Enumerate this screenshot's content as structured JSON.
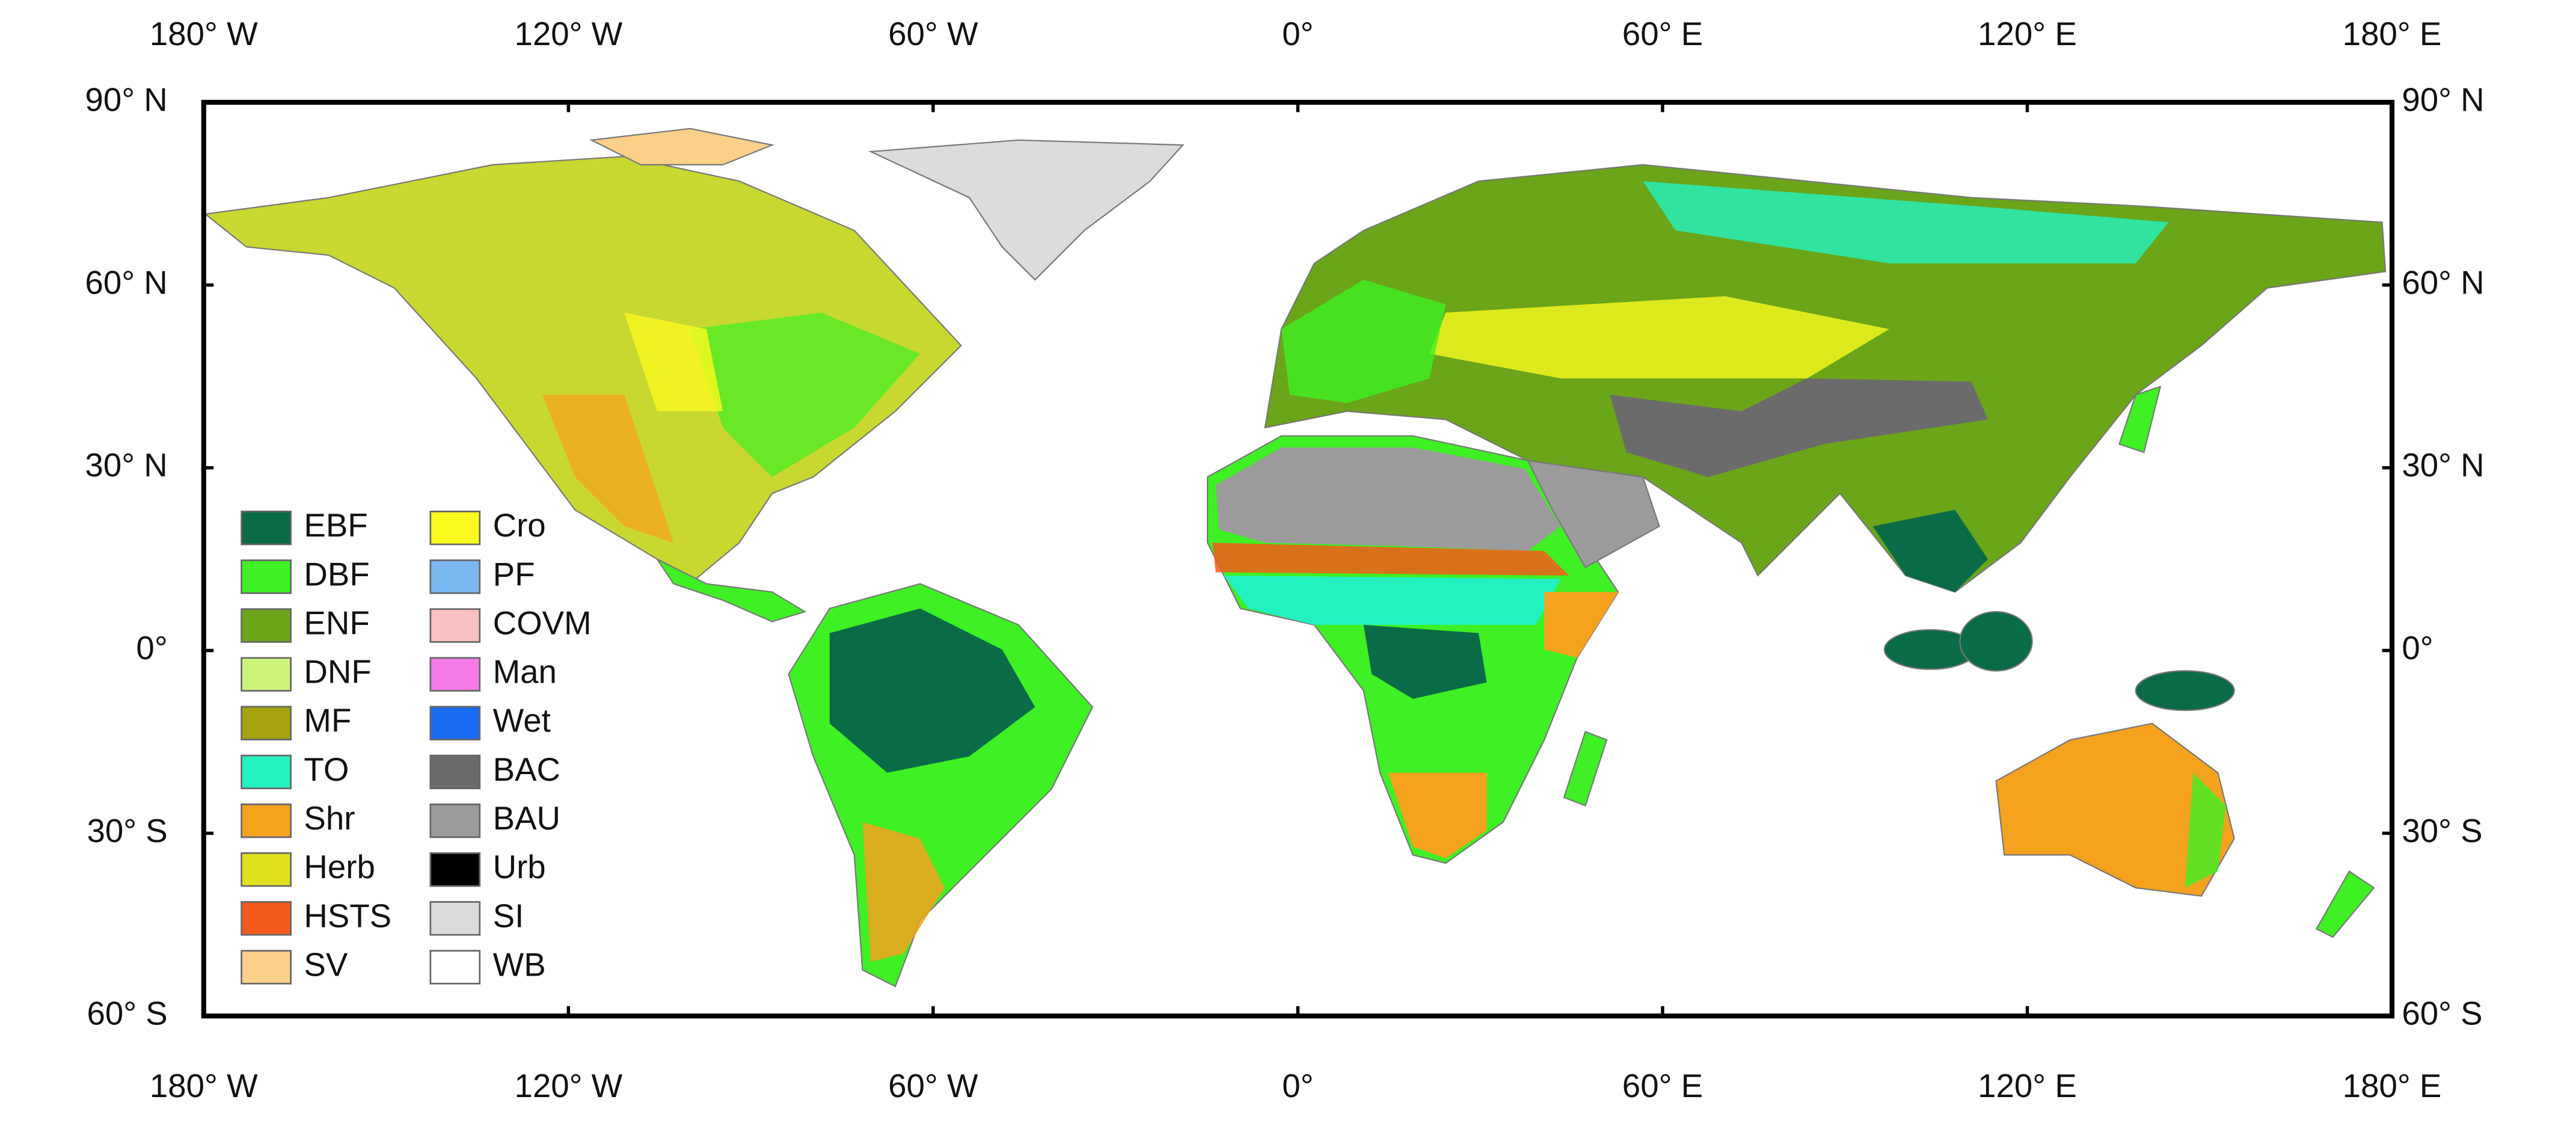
{
  "map": {
    "lon_ticks": [
      "180° W",
      "120° W",
      "60° W",
      "0°",
      "60° E",
      "120° E",
      "180° E"
    ],
    "lat_ticks": [
      "90° N",
      "60° N",
      "30° N",
      "0°",
      "30° S",
      "60° S"
    ],
    "legend": [
      {
        "name": "EBF",
        "color": "#0a6b47"
      },
      {
        "name": "DBF",
        "color": "#3ef024"
      },
      {
        "name": "ENF",
        "color": "#6aa51a"
      },
      {
        "name": "DNF",
        "color": "#ccf577"
      },
      {
        "name": "MF",
        "color": "#a5a30f"
      },
      {
        "name": "TO",
        "color": "#23f2c0"
      },
      {
        "name": "Shr",
        "color": "#f5a21e"
      },
      {
        "name": "Herb",
        "color": "#e0e020"
      },
      {
        "name": "HSTS",
        "color": "#f25b1a"
      },
      {
        "name": "SV",
        "color": "#fdd08a"
      },
      {
        "name": "Cro",
        "color": "#fafa1e"
      },
      {
        "name": "PF",
        "color": "#7ab6f0"
      },
      {
        "name": "COVM",
        "color": "#f9c0c0"
      },
      {
        "name": "Man",
        "color": "#f47ae8"
      },
      {
        "name": "Wet",
        "color": "#1a6bf2"
      },
      {
        "name": "BAC",
        "color": "#6b6b6b"
      },
      {
        "name": "BAU",
        "color": "#9b9b9b"
      },
      {
        "name": "Urb",
        "color": "#000000"
      },
      {
        "name": "SI",
        "color": "#dcdcdc"
      },
      {
        "name": "WB",
        "color": "#ffffff"
      }
    ]
  }
}
